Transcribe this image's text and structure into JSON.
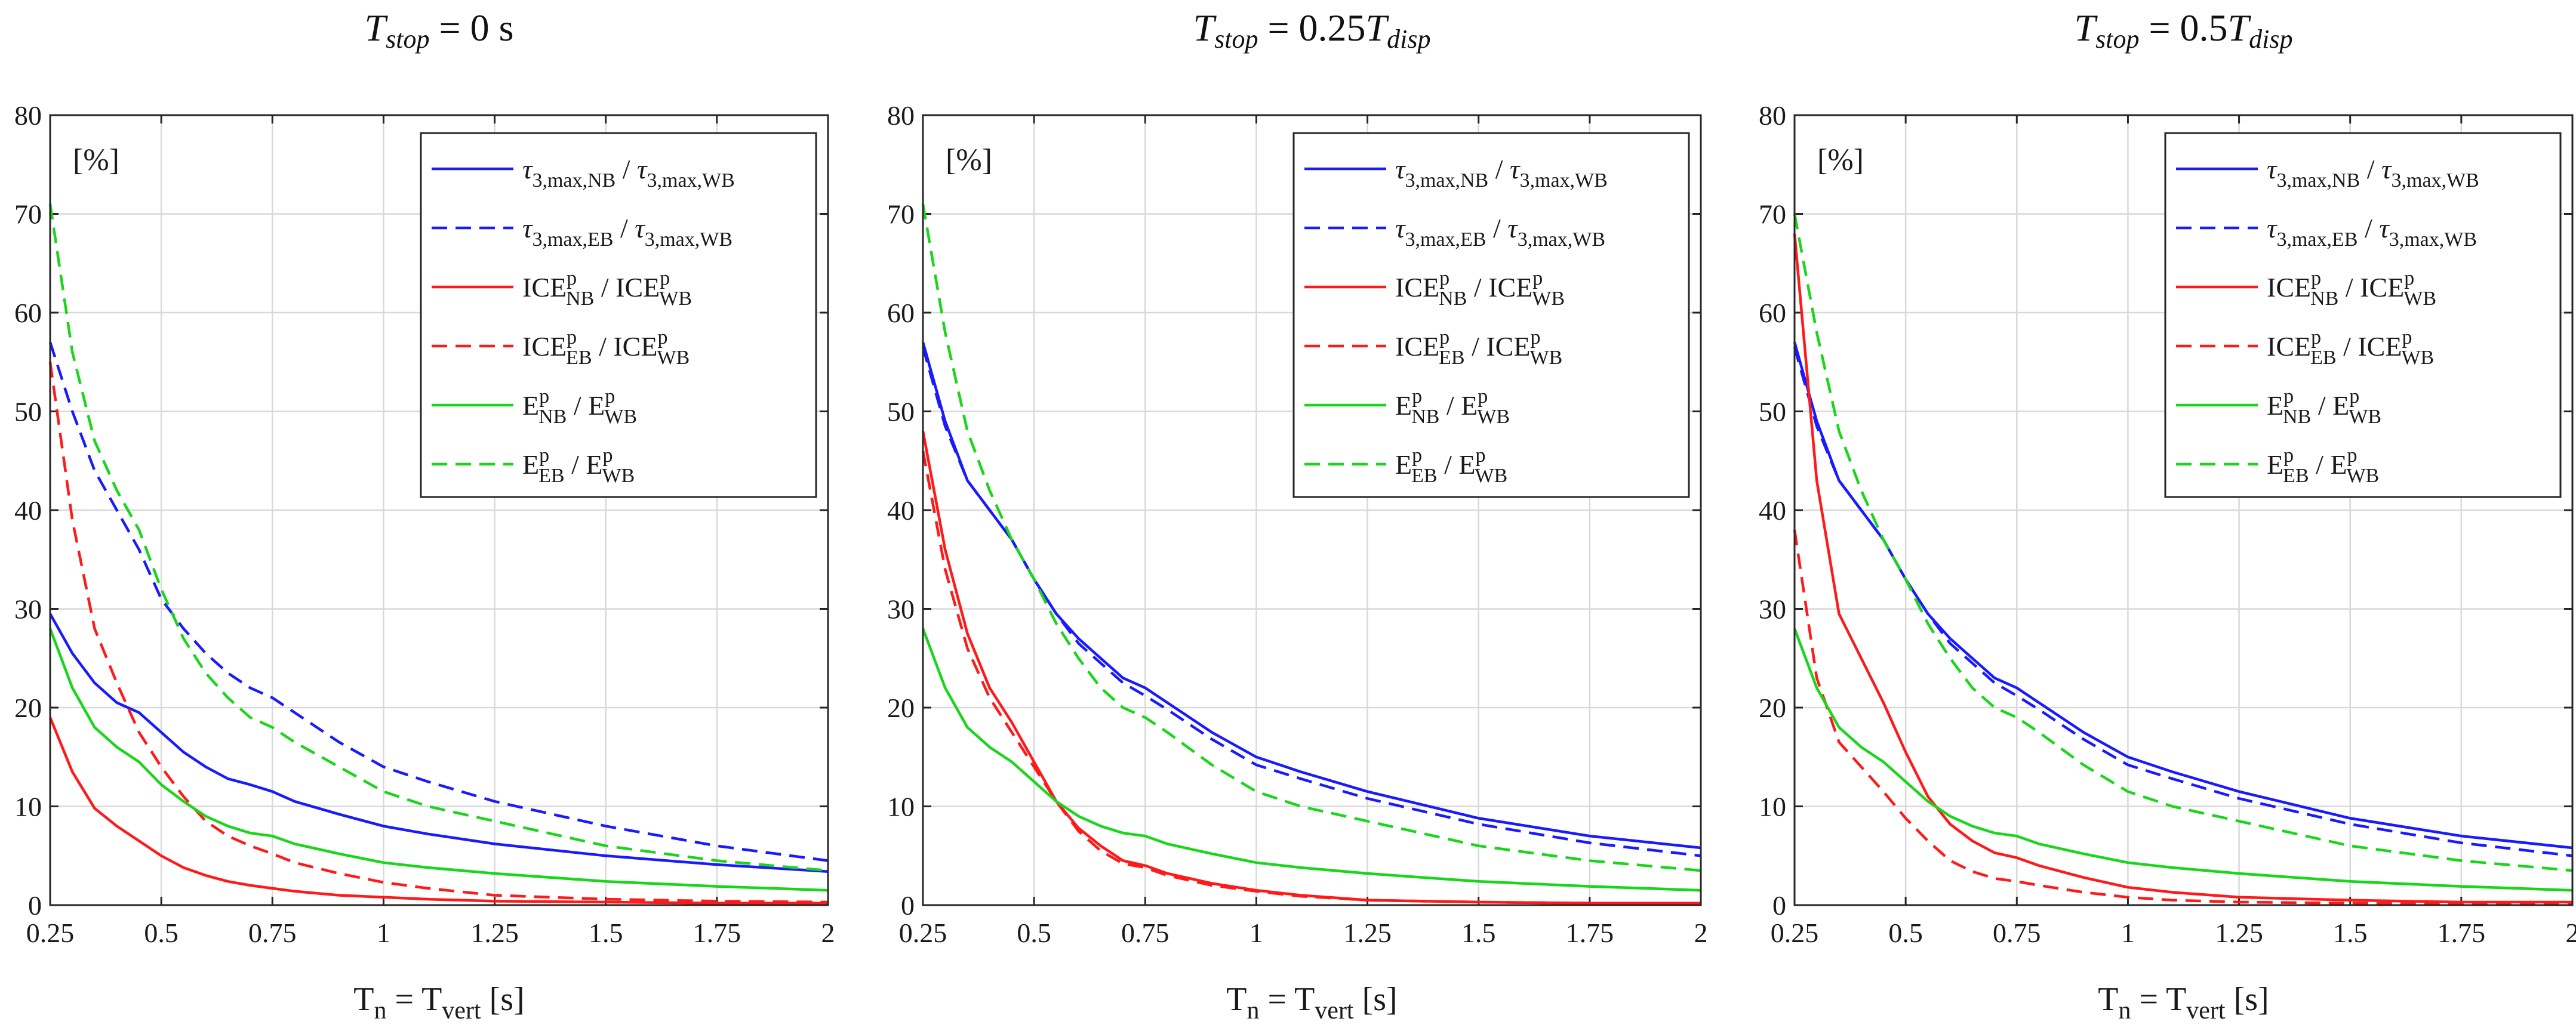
{
  "chart_data": [
    {
      "type": "line",
      "title": "T_stop = 0 s",
      "title_parts": {
        "var": "T",
        "sub": "stop",
        "rest": " = 0 s",
        "suffix_var": "",
        "suffix_sub": ""
      },
      "unit_label": "[%]",
      "xlabel": "T_n = T_vert [s]",
      "xlim": [
        0.25,
        2
      ],
      "ylim": [
        0,
        80
      ],
      "xticks": [
        0.25,
        0.5,
        0.75,
        1,
        1.25,
        1.5,
        1.75,
        2
      ],
      "xtick_labels": [
        "0.25",
        "0.5",
        "0.75",
        "1",
        "1.25",
        "1.5",
        "1.75",
        "2"
      ],
      "yticks": [
        0,
        10,
        20,
        30,
        40,
        50,
        60,
        70,
        80
      ],
      "ytick_labels": [
        "0",
        "10",
        "20",
        "30",
        "40",
        "50",
        "60",
        "70",
        "80"
      ],
      "grid": true,
      "legend_position": "top-right",
      "x": [
        0.25,
        0.3,
        0.35,
        0.4,
        0.45,
        0.5,
        0.55,
        0.6,
        0.65,
        0.7,
        0.75,
        0.8,
        0.9,
        1.0,
        1.1,
        1.25,
        1.5,
        1.75,
        2.0
      ],
      "series": [
        {
          "name": "τ3,max,NB / τ3,max,WB",
          "color": "#1a1aff",
          "style": "solid",
          "values": [
            29.5,
            25.5,
            22.5,
            20.5,
            19.5,
            17.5,
            15.5,
            14,
            12.8,
            12.2,
            11.5,
            10.5,
            9.2,
            8,
            7.2,
            6.2,
            5,
            4.1,
            3.4
          ]
        },
        {
          "name": "τ3,max,EB / τ3,max,WB",
          "color": "#1a1aff",
          "style": "dashed",
          "values": [
            57,
            50,
            44,
            40,
            36,
            31,
            28,
            25.5,
            23.5,
            22,
            21,
            19.5,
            16.5,
            14,
            12.5,
            10.5,
            8,
            6,
            4.5
          ]
        },
        {
          "name": "ICE_NB^p / ICE_WB^p",
          "color": "#ff1a1a",
          "style": "solid",
          "values": [
            19,
            13.5,
            9.8,
            8,
            6.5,
            5,
            3.8,
            3,
            2.4,
            2,
            1.7,
            1.4,
            1,
            0.8,
            0.6,
            0.4,
            0.3,
            0.2,
            0.2
          ]
        },
        {
          "name": "ICE_EB^p / ICE_WB^p",
          "color": "#ff1a1a",
          "style": "dashed",
          "values": [
            55,
            39,
            28,
            22.5,
            17.5,
            14,
            11,
            8.5,
            7,
            6,
            5.2,
            4.3,
            3.2,
            2.3,
            1.7,
            1,
            0.6,
            0.4,
            0.3
          ]
        },
        {
          "name": "E_NB^p / E_WB^p",
          "color": "#1ad61a",
          "style": "solid",
          "values": [
            28,
            22,
            18,
            16,
            14.5,
            12.2,
            10.5,
            9,
            8,
            7.3,
            7,
            6.2,
            5.2,
            4.3,
            3.8,
            3.2,
            2.4,
            1.9,
            1.5
          ]
        },
        {
          "name": "E_EB^p / E_WB^p",
          "color": "#1ad61a",
          "style": "dashed",
          "values": [
            71,
            56,
            47,
            42,
            38,
            32,
            27,
            23.5,
            21,
            19,
            18,
            16.5,
            14,
            11.5,
            10,
            8.5,
            6,
            4.5,
            3.5
          ]
        }
      ]
    },
    {
      "type": "line",
      "title": "T_stop = 0.25T_disp",
      "title_parts": {
        "var": "T",
        "sub": "stop",
        "rest": " = 0.25",
        "suffix_var": "T",
        "suffix_sub": "disp"
      },
      "unit_label": "[%]",
      "xlabel": "T_n = T_vert [s]",
      "xlim": [
        0.25,
        2
      ],
      "ylim": [
        0,
        80
      ],
      "xticks": [
        0.25,
        0.5,
        0.75,
        1,
        1.25,
        1.5,
        1.75,
        2
      ],
      "xtick_labels": [
        "0.25",
        "0.5",
        "0.75",
        "1",
        "1.25",
        "1.5",
        "1.75",
        "2"
      ],
      "yticks": [
        0,
        10,
        20,
        30,
        40,
        50,
        60,
        70,
        80
      ],
      "ytick_labels": [
        "0",
        "10",
        "20",
        "30",
        "40",
        "50",
        "60",
        "70",
        "80"
      ],
      "grid": true,
      "legend_position": "top-right",
      "x": [
        0.25,
        0.3,
        0.35,
        0.4,
        0.45,
        0.5,
        0.55,
        0.6,
        0.65,
        0.7,
        0.75,
        0.8,
        0.9,
        1.0,
        1.1,
        1.25,
        1.5,
        1.75,
        2.0
      ],
      "series": [
        {
          "name": "τ3,max,NB / τ3,max,WB",
          "color": "#1a1aff",
          "style": "solid",
          "values": [
            57,
            49,
            43,
            40,
            37,
            33,
            29.5,
            27,
            25,
            23,
            22,
            20.5,
            17.5,
            15,
            13.5,
            11.5,
            8.8,
            7,
            5.8
          ]
        },
        {
          "name": "τ3,max,EB / τ3,max,WB",
          "color": "#1a1aff",
          "style": "dashed",
          "values": [
            56.5,
            48.5,
            43,
            40,
            37,
            33,
            29.5,
            26.5,
            24.5,
            22.5,
            21.2,
            19.8,
            16.8,
            14.2,
            12.8,
            10.8,
            8.2,
            6.3,
            5
          ]
        },
        {
          "name": "ICE_NB^p / ICE_WB^p",
          "color": "#ff1a1a",
          "style": "solid",
          "values": [
            48,
            36,
            27.5,
            22,
            18.5,
            14.5,
            10.5,
            7.8,
            6,
            4.5,
            4,
            3.2,
            2.2,
            1.5,
            1,
            0.5,
            0.3,
            0.2,
            0.2
          ]
        },
        {
          "name": "ICE_EB^p / ICE_WB^p",
          "color": "#ff1a1a",
          "style": "dashed",
          "values": [
            46,
            34,
            26,
            21,
            17.5,
            14,
            10.5,
            7.5,
            5.5,
            4.2,
            3.8,
            3,
            2,
            1.4,
            0.9,
            0.5,
            0.3,
            0.2,
            0.2
          ]
        },
        {
          "name": "E_NB^p / E_WB^p",
          "color": "#1ad61a",
          "style": "solid",
          "values": [
            28,
            22,
            18,
            16,
            14.5,
            12.5,
            10.5,
            9,
            8,
            7.3,
            7,
            6.2,
            5.2,
            4.3,
            3.8,
            3.2,
            2.4,
            1.9,
            1.5
          ]
        },
        {
          "name": "E_EB^p / E_WB^p",
          "color": "#1ad61a",
          "style": "dashed",
          "values": [
            71,
            58,
            48,
            42,
            37,
            33,
            28.5,
            25,
            22,
            20,
            19,
            17.5,
            14.2,
            11.5,
            10,
            8.5,
            6,
            4.5,
            3.5
          ]
        }
      ]
    },
    {
      "type": "line",
      "title": "T_stop = 0.5T_disp",
      "title_parts": {
        "var": "T",
        "sub": "stop",
        "rest": " = 0.5",
        "suffix_var": "T",
        "suffix_sub": "disp"
      },
      "unit_label": "[%]",
      "xlabel": "T_n = T_vert [s]",
      "xlim": [
        0.25,
        2
      ],
      "ylim": [
        0,
        80
      ],
      "xticks": [
        0.25,
        0.5,
        0.75,
        1,
        1.25,
        1.5,
        1.75,
        2
      ],
      "xtick_labels": [
        "0.25",
        "0.5",
        "0.75",
        "1",
        "1.25",
        "1.5",
        "1.75",
        "2"
      ],
      "yticks": [
        0,
        10,
        20,
        30,
        40,
        50,
        60,
        70,
        80
      ],
      "ytick_labels": [
        "0",
        "10",
        "20",
        "30",
        "40",
        "50",
        "60",
        "70",
        "80"
      ],
      "grid": true,
      "legend_position": "top-right",
      "x": [
        0.25,
        0.3,
        0.35,
        0.4,
        0.45,
        0.5,
        0.55,
        0.6,
        0.65,
        0.7,
        0.75,
        0.8,
        0.9,
        1.0,
        1.1,
        1.25,
        1.5,
        1.75,
        2.0
      ],
      "series": [
        {
          "name": "τ3,max,NB / τ3,max,WB",
          "color": "#1a1aff",
          "style": "solid",
          "values": [
            57,
            49,
            43,
            40,
            37,
            33,
            29.5,
            27,
            25,
            23,
            22,
            20.5,
            17.5,
            15,
            13.5,
            11.5,
            8.8,
            7,
            5.8
          ]
        },
        {
          "name": "τ3,max,EB / τ3,max,WB",
          "color": "#1a1aff",
          "style": "dashed",
          "values": [
            56.5,
            48.5,
            43,
            40,
            37,
            33,
            29.5,
            26.5,
            24.5,
            22.5,
            21.2,
            19.8,
            16.8,
            14.2,
            12.8,
            10.8,
            8.2,
            6.3,
            5
          ]
        },
        {
          "name": "ICE_NB^p / ICE_WB^p",
          "color": "#ff1a1a",
          "style": "solid",
          "values": [
            68,
            43,
            29.5,
            25,
            20.5,
            15.5,
            11,
            8.2,
            6.5,
            5.3,
            4.8,
            4,
            2.8,
            1.8,
            1.3,
            0.8,
            0.5,
            0.3,
            0.3
          ]
        },
        {
          "name": "ICE_EB^p / ICE_WB^p",
          "color": "#ff1a1a",
          "style": "dashed",
          "values": [
            38,
            23,
            16.5,
            14,
            11.5,
            8.8,
            6.5,
            4.5,
            3.4,
            2.7,
            2.4,
            2,
            1.3,
            0.8,
            0.5,
            0.3,
            0.2,
            0.1,
            0.1
          ]
        },
        {
          "name": "E_NB^p / E_WB^p",
          "color": "#1ad61a",
          "style": "solid",
          "values": [
            28,
            22,
            18,
            16,
            14.5,
            12.5,
            10.5,
            9,
            8,
            7.3,
            7,
            6.2,
            5.2,
            4.3,
            3.8,
            3.2,
            2.4,
            1.9,
            1.5
          ]
        },
        {
          "name": "E_EB^p / E_WB^p",
          "color": "#1ad61a",
          "style": "dashed",
          "values": [
            70,
            58,
            48,
            42,
            37,
            33,
            28.5,
            25,
            22,
            20,
            19,
            17.5,
            14.2,
            11.5,
            10,
            8.5,
            6,
            4.5,
            3.5
          ]
        }
      ]
    }
  ]
}
